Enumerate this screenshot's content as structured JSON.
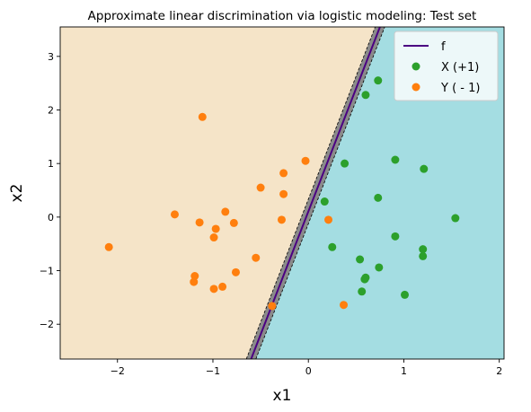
{
  "chart_data": {
    "type": "scatter",
    "title": "Approximate linear discrimination via logistic modeling: Test set",
    "xlabel": "x1",
    "ylabel": "x2",
    "xlim": [
      -2.6,
      2.05
    ],
    "ylim": [
      -2.65,
      3.55
    ],
    "x_ticks": [
      -2,
      -1,
      0,
      1,
      2
    ],
    "y_ticks": [
      -2,
      -1,
      0,
      1,
      2,
      3
    ],
    "x_tick_labels": [
      "−2",
      "−1",
      "0",
      "1",
      "2"
    ],
    "y_tick_labels": [
      "−2",
      "−1",
      "0",
      "1",
      "2",
      "3"
    ],
    "grid": false,
    "legend_position": "top-right",
    "decision_boundary": {
      "name": "f",
      "line": [
        [
          -0.6,
          -2.65
        ],
        [
          0.75,
          3.55
        ]
      ],
      "band_halfwidth": 0.05,
      "color": "#4b0082"
    },
    "regions": {
      "left_color": "#f5e4c8",
      "right_color": "#a4dde2"
    },
    "series": [
      {
        "name": "X (+1)",
        "color": "#2ca02c",
        "points": [
          [
            0.73,
            2.55
          ],
          [
            0.6,
            2.28
          ],
          [
            0.38,
            1.0
          ],
          [
            0.91,
            1.07
          ],
          [
            1.21,
            0.9
          ],
          [
            0.17,
            0.29
          ],
          [
            0.73,
            0.36
          ],
          [
            1.54,
            -0.02
          ],
          [
            0.25,
            -0.56
          ],
          [
            0.91,
            -0.36
          ],
          [
            1.2,
            -0.6
          ],
          [
            1.2,
            -0.73
          ],
          [
            0.54,
            -0.79
          ],
          [
            0.74,
            -0.94
          ],
          [
            0.6,
            -1.13
          ],
          [
            0.59,
            -1.16
          ],
          [
            0.56,
            -1.39
          ],
          [
            1.01,
            -1.45
          ]
        ]
      },
      {
        "name": "Y ( - 1)",
        "color": "#ff7f0e",
        "points": [
          [
            -1.11,
            1.87
          ],
          [
            -0.03,
            1.05
          ],
          [
            -0.26,
            0.82
          ],
          [
            -0.5,
            0.55
          ],
          [
            -0.26,
            0.43
          ],
          [
            -1.4,
            0.05
          ],
          [
            -0.87,
            0.1
          ],
          [
            -1.14,
            -0.1
          ],
          [
            -0.78,
            -0.11
          ],
          [
            -0.97,
            -0.22
          ],
          [
            -0.99,
            -0.38
          ],
          [
            -0.28,
            -0.05
          ],
          [
            0.21,
            -0.05
          ],
          [
            -2.09,
            -0.56
          ],
          [
            -0.55,
            -0.76
          ],
          [
            -0.76,
            -1.03
          ],
          [
            -1.19,
            -1.1
          ],
          [
            -1.2,
            -1.21
          ],
          [
            -0.9,
            -1.3
          ],
          [
            -0.99,
            -1.34
          ],
          [
            -0.38,
            -1.66
          ],
          [
            0.37,
            -1.64
          ]
        ]
      }
    ]
  }
}
